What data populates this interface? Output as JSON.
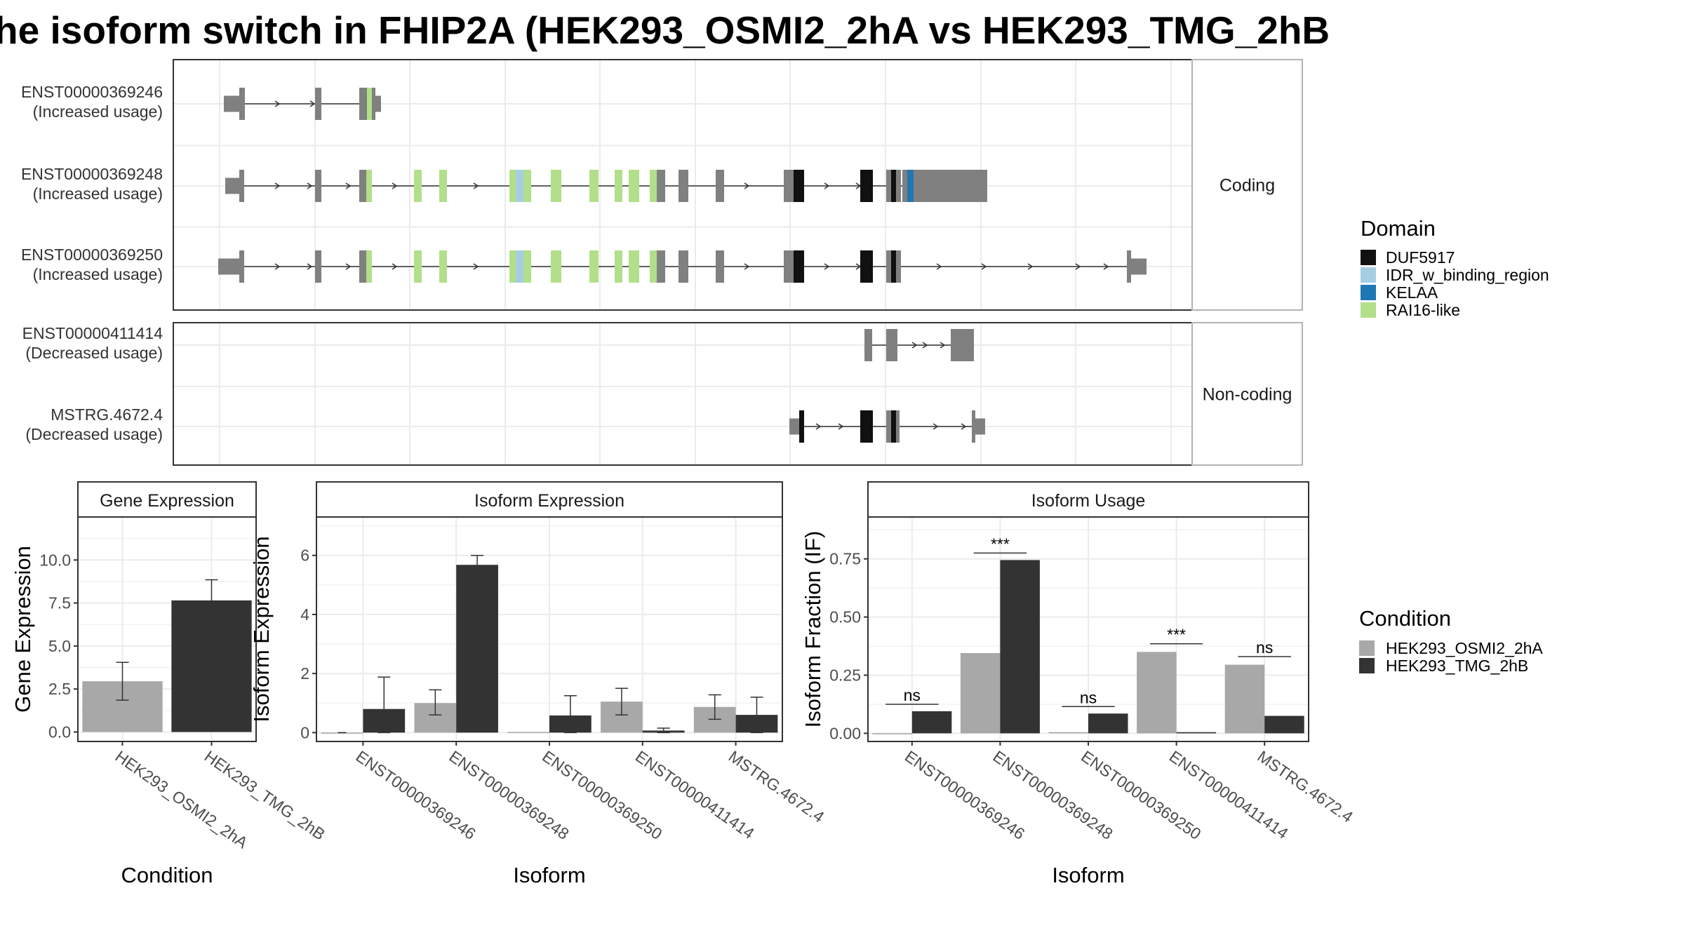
{
  "title": "he isoform switch in FHIP2A (HEK293_OSMI2_2hA vs HEK293_TMG_2hB",
  "colors": {
    "exon": "#808080",
    "DUF5917": "#111111",
    "IDR_w_binding_region": "#a6cee3",
    "KELAA": "#1f78b4",
    "RAI16-like": "#b2df8a",
    "cond_a": "#a8a8a8",
    "cond_b": "#333333"
  },
  "structure": {
    "panels": [
      {
        "label": "Coding",
        "transcripts": [
          {
            "id": "ENST00000369246",
            "usage": "(Increased usage)"
          },
          {
            "id": "ENST00000369248",
            "usage": "(Increased usage)"
          },
          {
            "id": "ENST00000369250",
            "usage": "(Increased usage)"
          }
        ]
      },
      {
        "label": "Non-coding",
        "transcripts": [
          {
            "id": "ENST00000411414",
            "usage": "(Decreased usage)"
          },
          {
            "id": "MSTRG.4672.4",
            "usage": "(Decreased usage)"
          }
        ]
      }
    ]
  },
  "legend_domain": {
    "title": "Domain",
    "items": [
      "DUF5917",
      "IDR_w_binding_region",
      "KELAA",
      "RAI16-like"
    ]
  },
  "legend_condition": {
    "title": "Condition",
    "items": [
      "HEK293_OSMI2_2hA",
      "HEK293_TMG_2hB"
    ]
  },
  "chart_data": [
    {
      "type": "bar",
      "title": "Gene Expression",
      "xlabel": "Condition",
      "ylabel": "Gene Expression",
      "categories": [
        "HEK293_OSMI2_2hA",
        "HEK293_TMG_2hB"
      ],
      "values": [
        2.95,
        7.65
      ],
      "err_low": [
        1.85,
        6.5
      ],
      "err_high": [
        4.05,
        8.85
      ],
      "ylim": [
        -0.55,
        12.5
      ],
      "yticks": [
        "0.0",
        "2.5",
        "5.0",
        "7.5",
        "10.0"
      ],
      "ytick_values": [
        0,
        2.5,
        5,
        7.5,
        10
      ],
      "grid": true
    },
    {
      "type": "bar",
      "title": "Isoform Expression",
      "xlabel": "Isoform",
      "ylabel": "Isoform Expression",
      "categories": [
        "ENST00000369246",
        "ENST00000369248",
        "ENST00000369250",
        "ENST00000411414",
        "MSTRG.4672.4"
      ],
      "series": [
        {
          "name": "HEK293_OSMI2_2hA",
          "values": [
            0.0,
            1.0,
            0.02,
            1.05,
            0.87
          ],
          "err_low": [
            0,
            0.6,
            0,
            0.6,
            0.45
          ],
          "err_high": [
            0,
            1.45,
            0,
            1.5,
            1.28
          ]
        },
        {
          "name": "HEK293_TMG_2hB",
          "values": [
            0.8,
            5.68,
            0.58,
            0.07,
            0.6
          ],
          "err_low": [
            0,
            5.35,
            0,
            0.0,
            0
          ],
          "err_high": [
            1.88,
            6.0,
            1.25,
            0.15,
            1.2
          ]
        }
      ],
      "ylim": [
        -0.3,
        7.3
      ],
      "yticks": [
        "0",
        "2",
        "4",
        "6"
      ],
      "ytick_values": [
        0,
        2,
        4,
        6
      ],
      "grid": true
    },
    {
      "type": "bar",
      "title": "Isoform Usage",
      "xlabel": "Isoform",
      "ylabel": "Isoform Fraction (IF)",
      "categories": [
        "ENST00000369246",
        "ENST00000369248",
        "ENST00000369250",
        "ENST00000411414",
        "MSTRG.4672.4"
      ],
      "series": [
        {
          "name": "HEK293_OSMI2_2hA",
          "values": [
            0.0,
            0.345,
            0.005,
            0.35,
            0.295
          ]
        },
        {
          "name": "HEK293_TMG_2hB",
          "values": [
            0.095,
            0.745,
            0.085,
            0.005,
            0.075
          ]
        }
      ],
      "significance": [
        "ns",
        "***",
        "ns",
        "***",
        "ns"
      ],
      "sig_level": [
        0.125,
        0.775,
        0.115,
        0.385,
        0.33
      ],
      "ylim": [
        -0.035,
        0.93
      ],
      "yticks": [
        "0.00",
        "0.25",
        "0.50",
        "0.75"
      ],
      "ytick_values": [
        0,
        0.25,
        0.5,
        0.75
      ],
      "grid": true
    }
  ]
}
